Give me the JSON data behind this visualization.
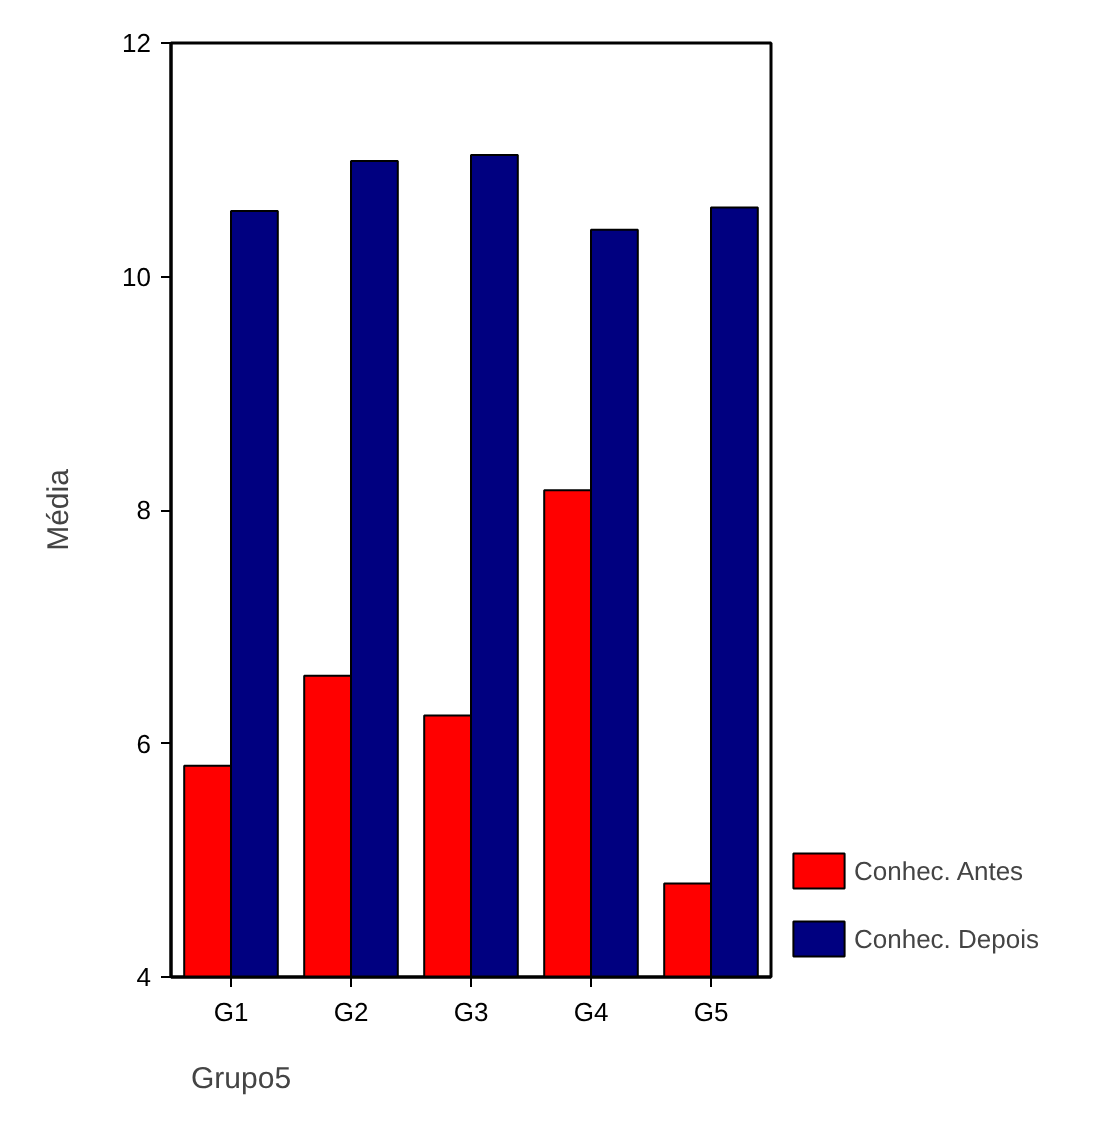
{
  "chart_data": {
    "type": "bar",
    "xlabel": "Grupo5",
    "ylabel": "Média",
    "categories": [
      "G1",
      "G2",
      "G3",
      "G4",
      "G5"
    ],
    "series": [
      {
        "name": "Conhec. Antes",
        "color": "#ff0000",
        "values": [
          5.81,
          6.58,
          6.24,
          8.17,
          4.8
        ]
      },
      {
        "name": "Conhec. Depois",
        "color": "#000080",
        "values": [
          10.56,
          10.99,
          11.04,
          10.4,
          10.59
        ]
      }
    ],
    "ylim": [
      4,
      12
    ],
    "yticks": [
      4,
      6,
      8,
      10,
      12
    ],
    "grid": false,
    "legend": "right"
  }
}
